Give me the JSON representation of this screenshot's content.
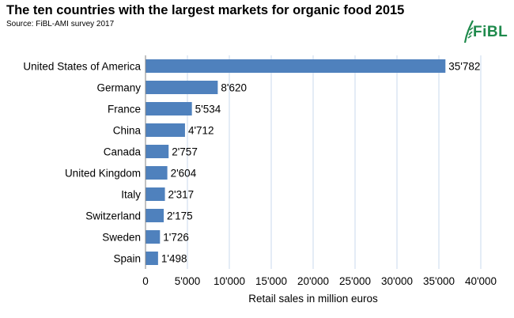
{
  "header": {
    "title": "The ten countries with the largest markets for organic food  2015",
    "subtitle": "Source: FiBL-AMI survey 2017",
    "logo_text": "FiBL"
  },
  "colors": {
    "bar": "#4f81bd",
    "grid": "#c9d9ec",
    "axis": "#868686",
    "logo": "#1f8a4c"
  },
  "chart_data": {
    "type": "bar",
    "orientation": "horizontal",
    "title": "The ten countries with the largest markets for organic food  2015",
    "subtitle": "Source: FiBL-AMI survey 2017",
    "xlabel": "Retail sales in million euros",
    "ylabel": "",
    "categories": [
      "United States of America",
      "Germany",
      "France",
      "China",
      "Canada",
      "United Kingdom",
      "Italy",
      "Switzerland",
      "Sweden",
      "Spain"
    ],
    "values": [
      35782,
      8620,
      5534,
      4712,
      2757,
      2604,
      2317,
      2175,
      1726,
      1498
    ],
    "value_labels": [
      "35'782",
      "8'620",
      "5'534",
      "4'712",
      "2'757",
      "2'604",
      "2'317",
      "2'175",
      "1'726",
      "1'498"
    ],
    "xlim": [
      0,
      40000
    ],
    "xticks": [
      0,
      5000,
      10000,
      15000,
      20000,
      25000,
      30000,
      35000,
      40000
    ],
    "xtick_labels": [
      "0",
      "5'000",
      "10'000",
      "15'000",
      "20'000",
      "25'000",
      "30'000",
      "35'000",
      "40'000"
    ],
    "grid": true,
    "legend": "none"
  }
}
